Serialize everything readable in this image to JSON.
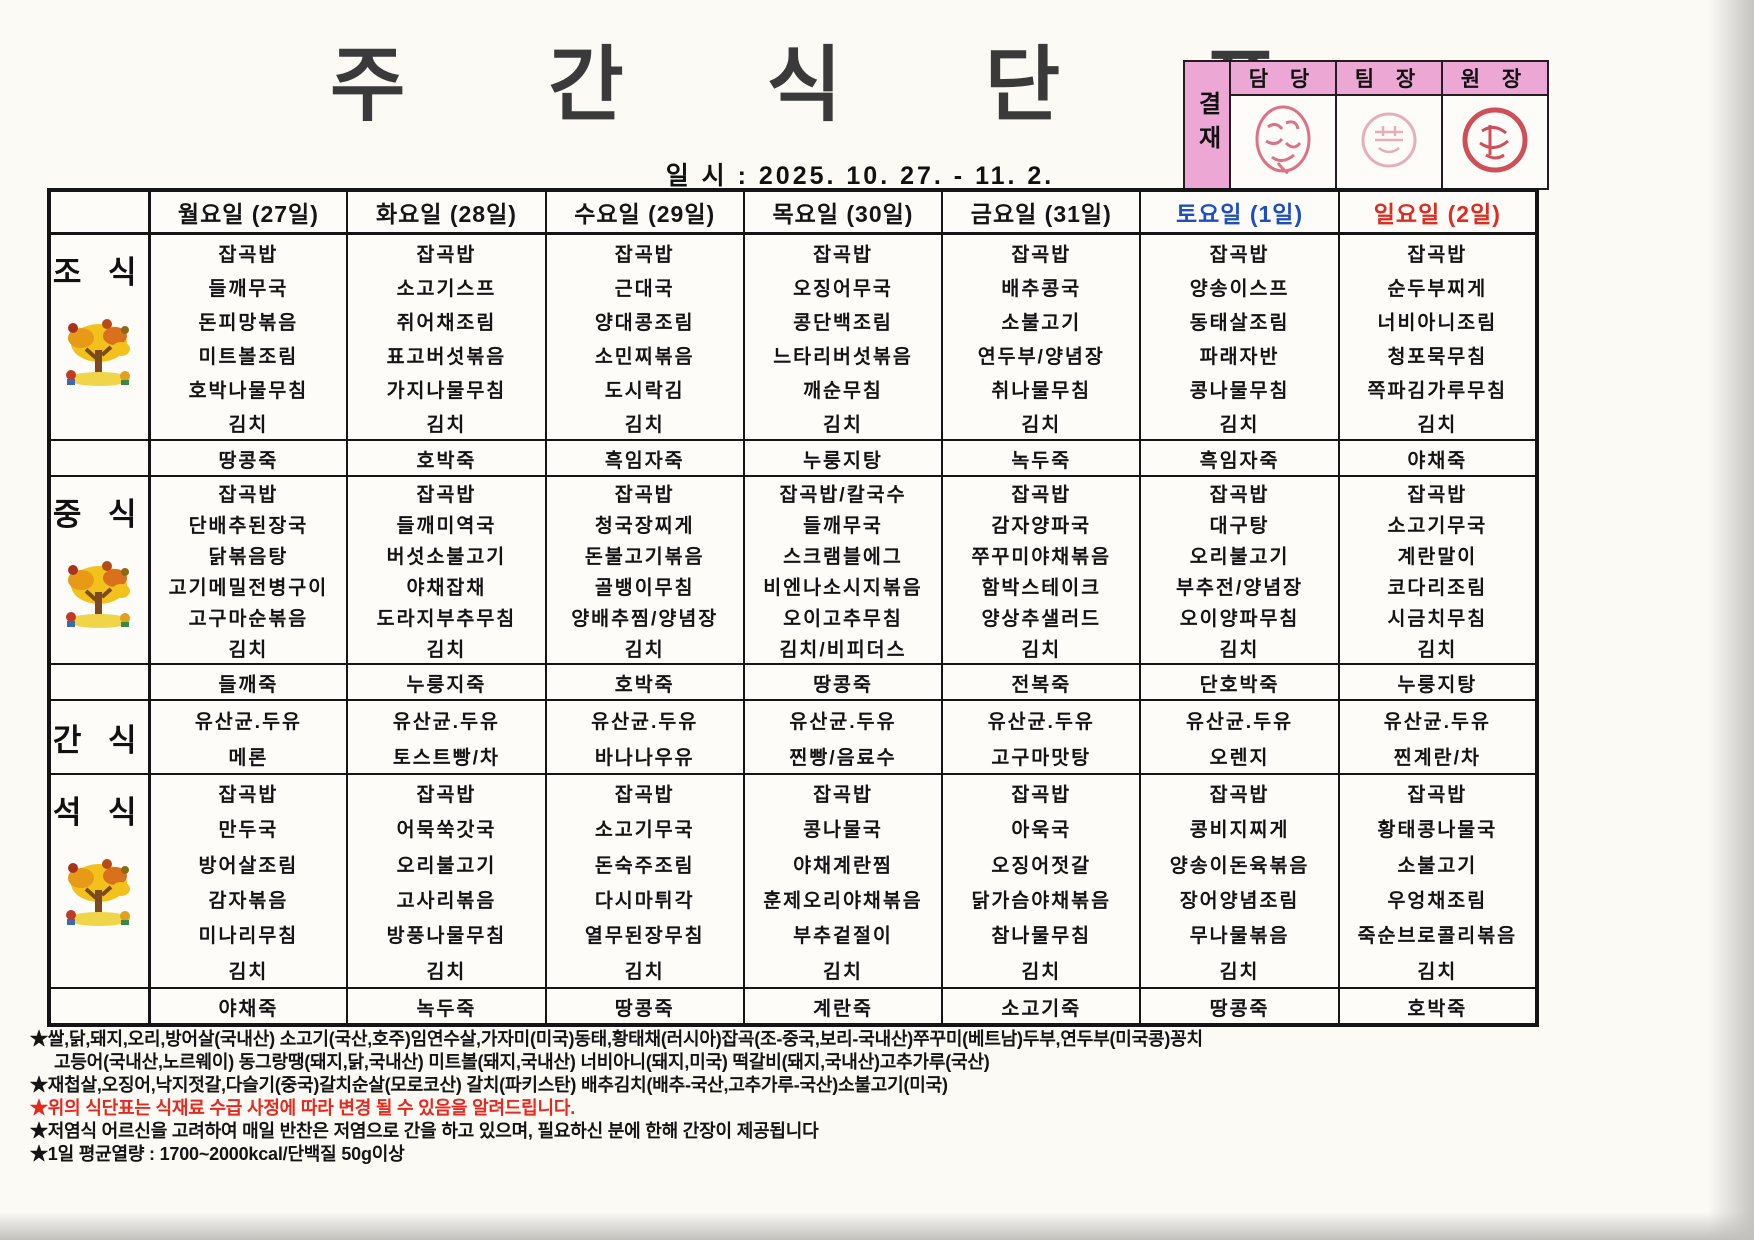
{
  "title": "주 간 식 단 표",
  "date_line": "일 시 : 2025. 10. 27. - 11. 2.",
  "approval": {
    "sign_label": "결재",
    "columns": [
      "담 당",
      "팀 장",
      "원 장"
    ]
  },
  "colors": {
    "saturday_header": "#1d4fc2",
    "sunday_header": "#e02b20",
    "porridge_divider": "#a63832",
    "approval_pink": "#eda7d4",
    "footnote_red": "#e8281e"
  },
  "table": {
    "day_headers": [
      {
        "label": "월요일 (27일)",
        "color": "#151515"
      },
      {
        "label": "화요일 (28일)",
        "color": "#151515"
      },
      {
        "label": "수요일 (29일)",
        "color": "#151515"
      },
      {
        "label": "목요일 (30일)",
        "color": "#151515"
      },
      {
        "label": "금요일 (31일)",
        "color": "#151515"
      },
      {
        "label": "토요일 (1일)",
        "color": "#1d4fc2"
      },
      {
        "label": "일요일 (2일)",
        "color": "#e02b20"
      }
    ],
    "sections": [
      {
        "meal": "조 식",
        "has_tree": true,
        "menus": [
          [
            "잡곡밥",
            "들깨무국",
            "돈피망볶음",
            "미트볼조림",
            "호박나물무침",
            "김치"
          ],
          [
            "잡곡밥",
            "소고기스프",
            "쥐어채조림",
            "표고버섯볶음",
            "가지나물무침",
            "김치"
          ],
          [
            "잡곡밥",
            "근대국",
            "양대콩조림",
            "소민찌볶음",
            "도시락김",
            "김치"
          ],
          [
            "잡곡밥",
            "오징어무국",
            "콩단백조림",
            "느타리버섯볶음",
            "깨순무침",
            "김치"
          ],
          [
            "잡곡밥",
            "배추콩국",
            "소불고기",
            "연두부/양념장",
            "취나물무침",
            "김치"
          ],
          [
            "잡곡밥",
            "양송이스프",
            "동태살조림",
            "파래자반",
            "콩나물무침",
            "김치"
          ],
          [
            "잡곡밥",
            "순두부찌게",
            "너비아니조림",
            "청포묵무침",
            "쪽파김가루무침",
            "김치"
          ]
        ],
        "porridge": [
          "땅콩죽",
          "호박죽",
          "흑임자죽",
          "누룽지탕",
          "녹두죽",
          "흑임자죽",
          "야채죽"
        ]
      },
      {
        "meal": "중 식",
        "has_tree": true,
        "menus": [
          [
            "잡곡밥",
            "단배추된장국",
            "닭볶음탕",
            "고기메밀전병구이",
            "고구마순볶음",
            "김치"
          ],
          [
            "잡곡밥",
            "들깨미역국",
            "버섯소불고기",
            "야채잡채",
            "도라지부추무침",
            "김치"
          ],
          [
            "잡곡밥",
            "청국장찌게",
            "돈불고기볶음",
            "골뱅이무침",
            "양배추찜/양념장",
            "김치"
          ],
          [
            "잡곡밥/칼국수",
            "들깨무국",
            "스크램블에그",
            "비엔나소시지볶음",
            "오이고추무침",
            "김치/비피더스"
          ],
          [
            "잡곡밥",
            "감자양파국",
            "쭈꾸미야채볶음",
            "함박스테이크",
            "양상추샐러드",
            "김치"
          ],
          [
            "잡곡밥",
            "대구탕",
            "오리불고기",
            "부추전/양념장",
            "오이양파무침",
            "김치"
          ],
          [
            "잡곡밥",
            "소고기무국",
            "계란말이",
            "코다리조림",
            "시금치무침",
            "김치"
          ]
        ],
        "porridge": [
          "들깨죽",
          "누룽지죽",
          "호박죽",
          "땅콩죽",
          "전복죽",
          "단호박죽",
          "누룽지탕"
        ]
      },
      {
        "meal": "간 식",
        "has_tree": false,
        "menus": [
          [
            "유산균.두유",
            "메론"
          ],
          [
            "유산균.두유",
            "토스트빵/차"
          ],
          [
            "유산균.두유",
            "바나나우유"
          ],
          [
            "유산균.두유",
            "찐빵/음료수"
          ],
          [
            "유산균.두유",
            "고구마맛탕"
          ],
          [
            "유산균.두유",
            "오렌지"
          ],
          [
            "유산균.두유",
            "찐계란/차"
          ]
        ],
        "porridge": null
      },
      {
        "meal": "석 식",
        "has_tree": true,
        "menus": [
          [
            "잡곡밥",
            "만두국",
            "방어살조림",
            "감자볶음",
            "미나리무침",
            "김치"
          ],
          [
            "잡곡밥",
            "어묵쑥갓국",
            "오리불고기",
            "고사리볶음",
            "방풍나물무침",
            "김치"
          ],
          [
            "잡곡밥",
            "소고기무국",
            "돈숙주조림",
            "다시마튀각",
            "열무된장무침",
            "김치"
          ],
          [
            "잡곡밥",
            "콩나물국",
            "야채계란찜",
            "훈제오리야채볶음",
            "부추겉절이",
            "김치"
          ],
          [
            "잡곡밥",
            "아욱국",
            "오징어젓갈",
            "닭가슴야채볶음",
            "참나물무침",
            "김치"
          ],
          [
            "잡곡밥",
            "콩비지찌게",
            "양송이돈육볶음",
            "장어양념조림",
            "무나물볶음",
            "김치"
          ],
          [
            "잡곡밥",
            "황태콩나물국",
            "소불고기",
            "우엉채조림",
            "죽순브로콜리볶음",
            "김치"
          ]
        ],
        "porridge": [
          "야채죽",
          "녹두죽",
          "땅콩죽",
          "계란죽",
          "소고기죽",
          "땅콩죽",
          "호박죽"
        ]
      }
    ]
  },
  "footnotes": [
    {
      "text": "★쌀,닭,돼지,오리,방어살(국내산) 소고기(국산,호주)임연수살,가자미(미국)동태,황태채(러시아)잡곡(조-중국,보리-국내산)쭈꾸미(베트남)두부,연두부(미국콩)꽁치",
      "style": "normal"
    },
    {
      "text": "고등어(국내산,노르웨이) 동그랑땡(돼지,닭,국내산) 미트볼(돼지,국내산) 너비아니(돼지,미국) 떡갈비(돼지,국내산)고추가루(국산)",
      "style": "indent"
    },
    {
      "text": "★재첩살,오징어,낙지젓갈,다슬기(중국)갈치순살(모로코산) 갈치(파키스탄) 배추김치(배추-국산,고추가루-국산)소불고기(미국)",
      "style": "normal"
    },
    {
      "text": "★위의 식단표는 식재료 수급 사정에 따라 변경 될 수 있음을 알려드립니다.",
      "style": "red"
    },
    {
      "text": "★저염식 어르신을 고려하여 매일 반찬은 저염으로 간을 하고 있으며, 필요하신 분에 한해 간장이 제공됩니다",
      "style": "normal"
    },
    {
      "text": "★1일 평균열량 : 1700~2000kcal/단백질 50g이상",
      "style": "normal"
    }
  ]
}
